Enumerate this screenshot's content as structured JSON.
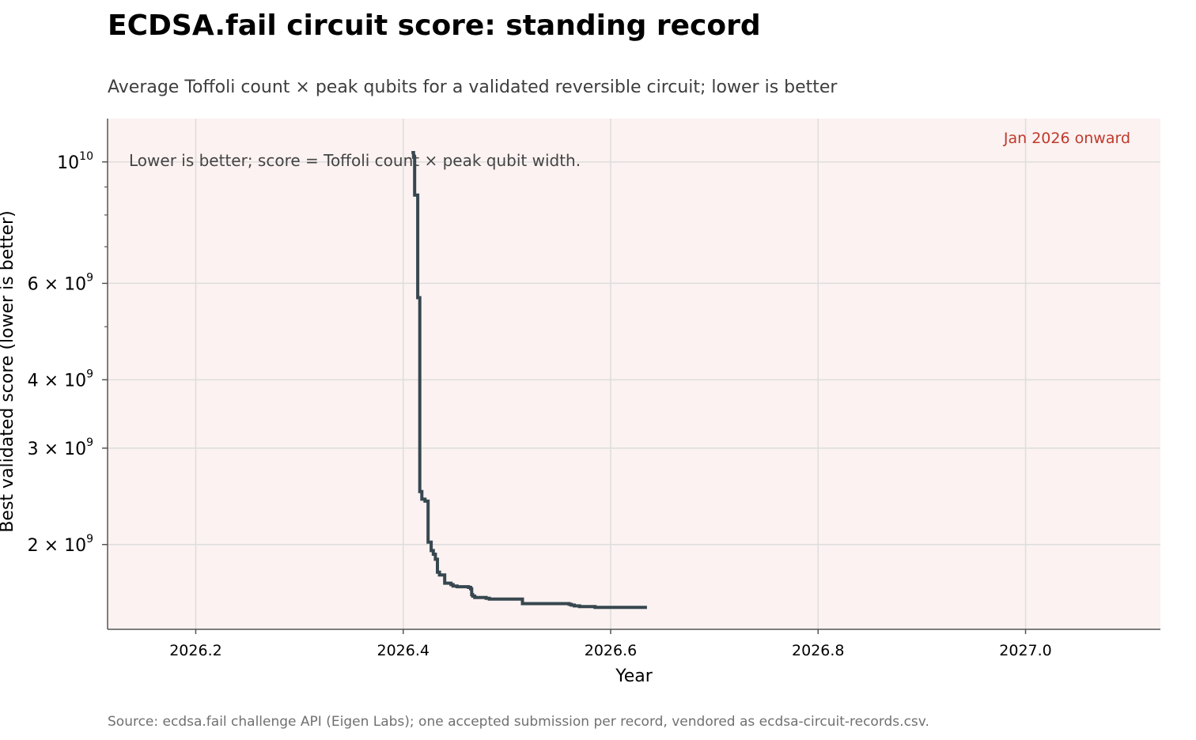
{
  "title": "ECDSA.fail circuit score: standing record",
  "subtitle": "Average Toffoli count × peak qubits for a validated reversible circuit; lower is better",
  "source": "Source: ecdsa.fail challenge API (Eigen Labs); one accepted submission per record, vendored as ecdsa-circuit-records.csv.",
  "colors": {
    "line": "#37474f",
    "background_band": "#fbf2f1",
    "band_label": "#c0392b",
    "grid": "#dddddd",
    "axis": "#555555"
  },
  "chart_data": {
    "type": "line",
    "step": "post",
    "xlabel": "Year",
    "ylabel": "Best validated score (lower is better)",
    "yscale": "log",
    "xlim": [
      2026.115,
      2027.13
    ],
    "ylim": [
      1400000000,
      12000000000
    ],
    "grid": true,
    "xticks": [
      2026.2,
      2026.4,
      2026.6,
      2026.8,
      2027.0
    ],
    "xtick_labels": [
      "2026.2",
      "2026.4",
      "2026.6",
      "2026.8",
      "2027.0"
    ],
    "yticks": [
      {
        "value": 10000000000,
        "mantissa": "",
        "exponent": "10"
      },
      {
        "value": 6000000000,
        "mantissa": "6",
        "exponent": "9"
      },
      {
        "value": 4000000000,
        "mantissa": "4",
        "exponent": "9"
      },
      {
        "value": 3000000000,
        "mantissa": "3",
        "exponent": "9"
      },
      {
        "value": 2000000000,
        "mantissa": "2",
        "exponent": "9"
      }
    ],
    "minor_yticks": [
      9000000000,
      8000000000,
      7000000000,
      5000000000
    ],
    "shaded_region": {
      "label": "Jan 2026 onward",
      "x_start": 2026.0
    },
    "annotation": "Lower is better; score = Toffoli count × peak qubit width.",
    "series": [
      {
        "x": [
          2026.408,
          2026.41,
          2026.411,
          2026.413,
          2026.414,
          2026.416,
          2026.418,
          2026.421,
          2026.422,
          2026.424,
          2026.425,
          2026.427,
          2026.429,
          2026.431,
          2026.433,
          2026.435,
          2026.44,
          2026.446,
          2026.448,
          2026.452,
          2026.463,
          2026.465,
          2026.466,
          2026.467,
          2026.469,
          2026.48,
          2026.483,
          2026.515,
          2026.56,
          2026.562,
          2026.565,
          2026.57,
          2026.585,
          2026.635
        ],
        "y": [
          10400000000,
          10200000000,
          8700000000,
          8700000000,
          5650000000,
          2500000000,
          2420000000,
          2400000000,
          2400000000,
          2020000000,
          2020000000,
          1950000000,
          1920000000,
          1880000000,
          1780000000,
          1760000000,
          1700000000,
          1690000000,
          1680000000,
          1675000000,
          1670000000,
          1660000000,
          1620000000,
          1610000000,
          1600000000,
          1595000000,
          1590000000,
          1560000000,
          1555000000,
          1550000000,
          1545000000,
          1540000000,
          1535000000,
          1535000000
        ]
      }
    ]
  }
}
